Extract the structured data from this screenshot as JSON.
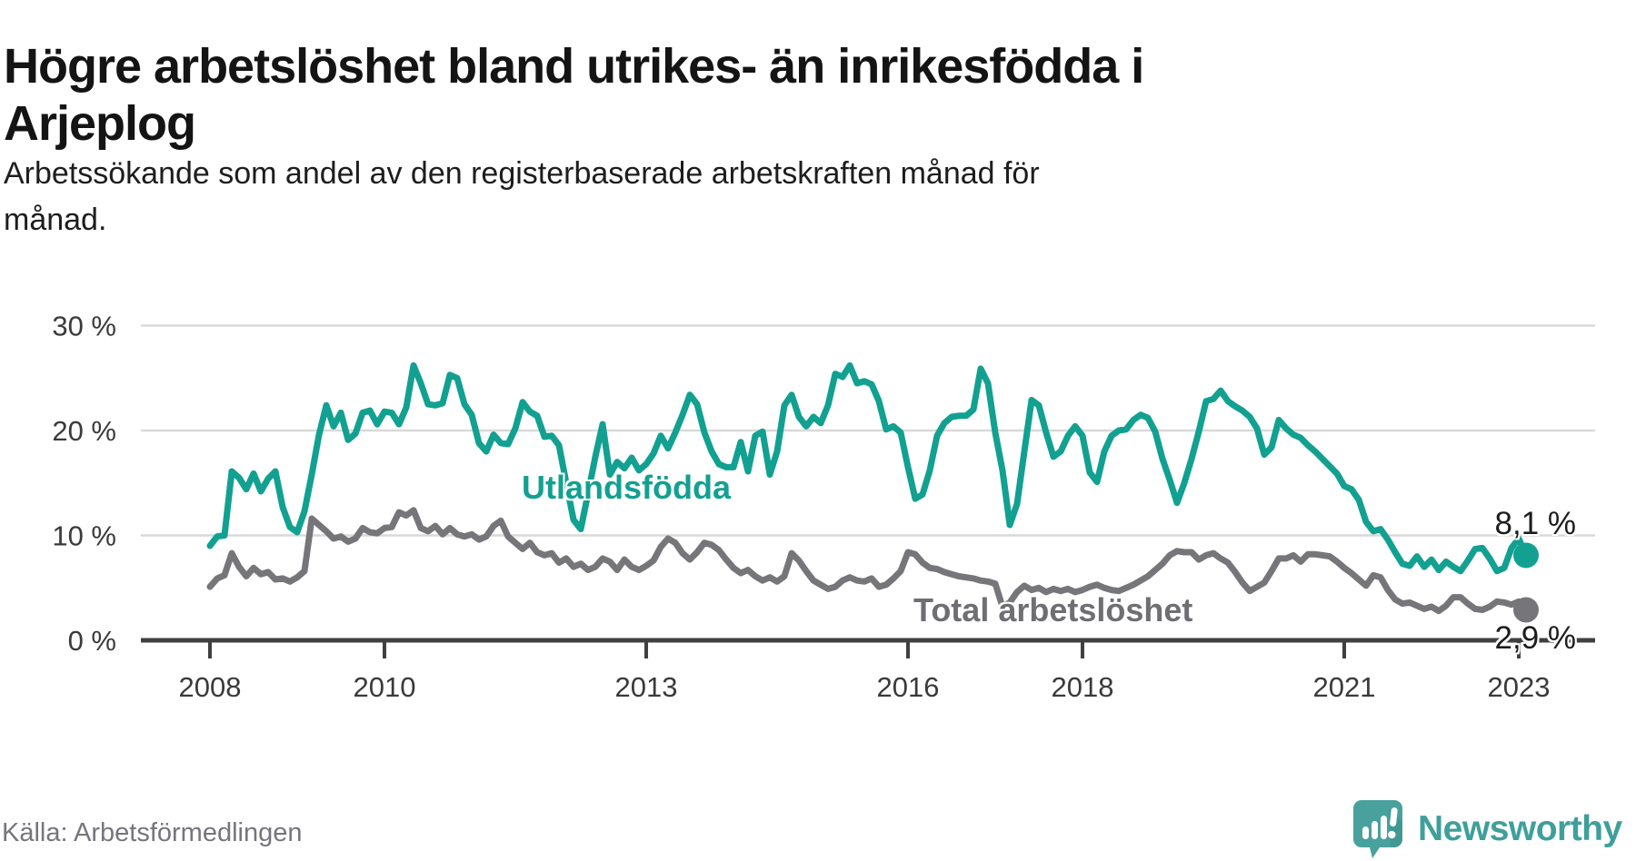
{
  "header": {
    "title": "Högre arbetslöshet bland utrikes- än inrikesfödda i\nArjeplog",
    "subtitle": "Arbetssökande som andel av den registerbaserade arbetskraften månad för\nmånad."
  },
  "source": {
    "label": "Källa: Arbetsförmedlingen"
  },
  "logo": {
    "text": "Newsworthy",
    "icon": "speech-bubble-bar-chart-icon",
    "icon_color": "#48a19c",
    "text_color": "#3f9f9b"
  },
  "chart_data": {
    "type": "line",
    "title": "Högre arbetslöshet bland utrikes- än inrikesfödda i Arjeplog",
    "subtitle": "Arbetssökande som andel av den registerbaserade arbetskraften månad för månad.",
    "x_start": "2008-01",
    "x_end": "2023-02",
    "x_frequency": "monthly",
    "x_tick_years": [
      2008,
      2010,
      2013,
      2016,
      2018,
      2021,
      2023
    ],
    "y_ticks": [
      0,
      10,
      20,
      30
    ],
    "y_tick_suffix": " %",
    "ylim": [
      0,
      30
    ],
    "grid": "horizontal",
    "legend_position": "inline-labels",
    "colors": {
      "grid": "#d9d9d9",
      "axis": "#404040",
      "tick_text": "#3a3a3a"
    },
    "series": [
      {
        "name": "Total arbetslöshet",
        "color": "#76767a",
        "end_label": "2,9 %",
        "end_value": 2.9,
        "values": [
          5.1,
          5.9,
          6.2,
          8.3,
          7.0,
          6.1,
          6.9,
          6.3,
          6.5,
          5.8,
          5.9,
          5.6,
          6.0,
          6.6,
          11.6,
          11.0,
          10.4,
          9.7,
          9.9,
          9.4,
          9.7,
          10.7,
          10.3,
          10.2,
          10.7,
          10.8,
          12.2,
          11.9,
          12.4,
          10.7,
          10.4,
          10.9,
          10.1,
          10.7,
          10.1,
          9.9,
          10.1,
          9.6,
          9.9,
          10.9,
          11.4,
          9.9,
          9.3,
          8.7,
          9.3,
          8.4,
          8.1,
          8.3,
          7.4,
          7.8,
          7.0,
          7.3,
          6.7,
          7.0,
          7.8,
          7.5,
          6.7,
          7.7,
          7.0,
          6.7,
          7.1,
          7.6,
          8.9,
          9.7,
          9.3,
          8.3,
          7.7,
          8.4,
          9.3,
          9.1,
          8.6,
          7.7,
          6.9,
          6.4,
          6.7,
          6.1,
          5.7,
          6.0,
          5.6,
          6.1,
          8.3,
          7.6,
          6.6,
          5.7,
          5.3,
          4.9,
          5.1,
          5.7,
          6.0,
          5.7,
          5.6,
          5.9,
          5.1,
          5.3,
          5.9,
          6.6,
          8.4,
          8.2,
          7.4,
          6.9,
          6.8,
          6.5,
          6.3,
          6.1,
          6.0,
          5.9,
          5.7,
          5.6,
          5.4,
          3.2,
          3.6,
          4.6,
          5.2,
          4.8,
          5.0,
          4.6,
          4.9,
          4.7,
          4.9,
          4.6,
          4.8,
          5.1,
          5.3,
          5.0,
          4.8,
          4.7,
          5.0,
          5.3,
          5.7,
          6.1,
          6.7,
          7.3,
          8.1,
          8.5,
          8.4,
          8.4,
          7.7,
          8.1,
          8.3,
          7.8,
          7.4,
          6.5,
          5.5,
          4.7,
          5.1,
          5.5,
          6.6,
          7.8,
          7.8,
          8.1,
          7.5,
          8.2,
          8.2,
          8.1,
          8.0,
          7.5,
          6.9,
          6.4,
          5.8,
          5.2,
          6.2,
          6.0,
          4.8,
          3.9,
          3.5,
          3.6,
          3.3,
          3.0,
          3.2,
          2.8,
          3.3,
          4.1,
          4.1,
          3.5,
          3.0,
          2.9,
          3.2,
          3.7,
          3.6,
          3.4,
          3.7,
          2.9
        ]
      },
      {
        "name": "Utlandsfödda",
        "color": "#12a091",
        "end_label": "8,1 %",
        "end_value": 8.1,
        "values": [
          9.0,
          9.9,
          10.0,
          16.1,
          15.5,
          14.4,
          15.9,
          14.2,
          15.4,
          16.1,
          12.7,
          10.8,
          10.3,
          12.3,
          15.8,
          19.6,
          22.4,
          20.4,
          21.7,
          19.1,
          19.7,
          21.7,
          21.9,
          20.6,
          21.8,
          21.7,
          20.6,
          22.2,
          26.2,
          24.5,
          22.5,
          22.4,
          22.6,
          25.3,
          25.0,
          22.5,
          21.5,
          18.8,
          18.0,
          19.6,
          18.8,
          18.7,
          20.2,
          22.7,
          21.8,
          21.4,
          19.4,
          19.5,
          18.6,
          15.0,
          11.5,
          10.6,
          14.0,
          17.5,
          20.6,
          15.8,
          17.0,
          16.4,
          17.4,
          16.2,
          16.8,
          17.8,
          19.5,
          18.3,
          19.8,
          21.5,
          23.4,
          22.5,
          19.8,
          18.0,
          16.8,
          16.5,
          16.5,
          18.9,
          16.1,
          19.5,
          19.9,
          15.8,
          18.0,
          22.4,
          23.4,
          21.3,
          20.4,
          21.3,
          20.7,
          22.4,
          25.4,
          25.1,
          26.2,
          24.5,
          24.7,
          24.4,
          22.8,
          20.1,
          20.4,
          19.8,
          16.5,
          13.5,
          13.9,
          16.2,
          19.5,
          20.7,
          21.3,
          21.4,
          21.4,
          22.0,
          25.9,
          24.5,
          19.8,
          16.2,
          11.0,
          13.0,
          18.0,
          22.9,
          22.4,
          19.8,
          17.5,
          18.0,
          19.5,
          20.4,
          19.5,
          16.0,
          15.1,
          18.0,
          19.5,
          20.0,
          20.1,
          21.0,
          21.5,
          21.2,
          19.9,
          17.3,
          15.3,
          13.1,
          15.0,
          17.3,
          19.9,
          22.8,
          23.0,
          23.8,
          22.8,
          22.3,
          21.9,
          21.3,
          20.2,
          17.7,
          18.4,
          21.0,
          20.2,
          19.6,
          19.3,
          18.6,
          18.0,
          17.3,
          16.6,
          15.9,
          14.7,
          14.4,
          13.4,
          11.3,
          10.4,
          10.6,
          9.6,
          8.4,
          7.3,
          7.1,
          8.0,
          7.0,
          7.7,
          6.7,
          7.5,
          7.0,
          6.6,
          7.6,
          8.7,
          8.8,
          7.8,
          6.6,
          6.9,
          8.8,
          9.7,
          8.1
        ]
      }
    ]
  }
}
